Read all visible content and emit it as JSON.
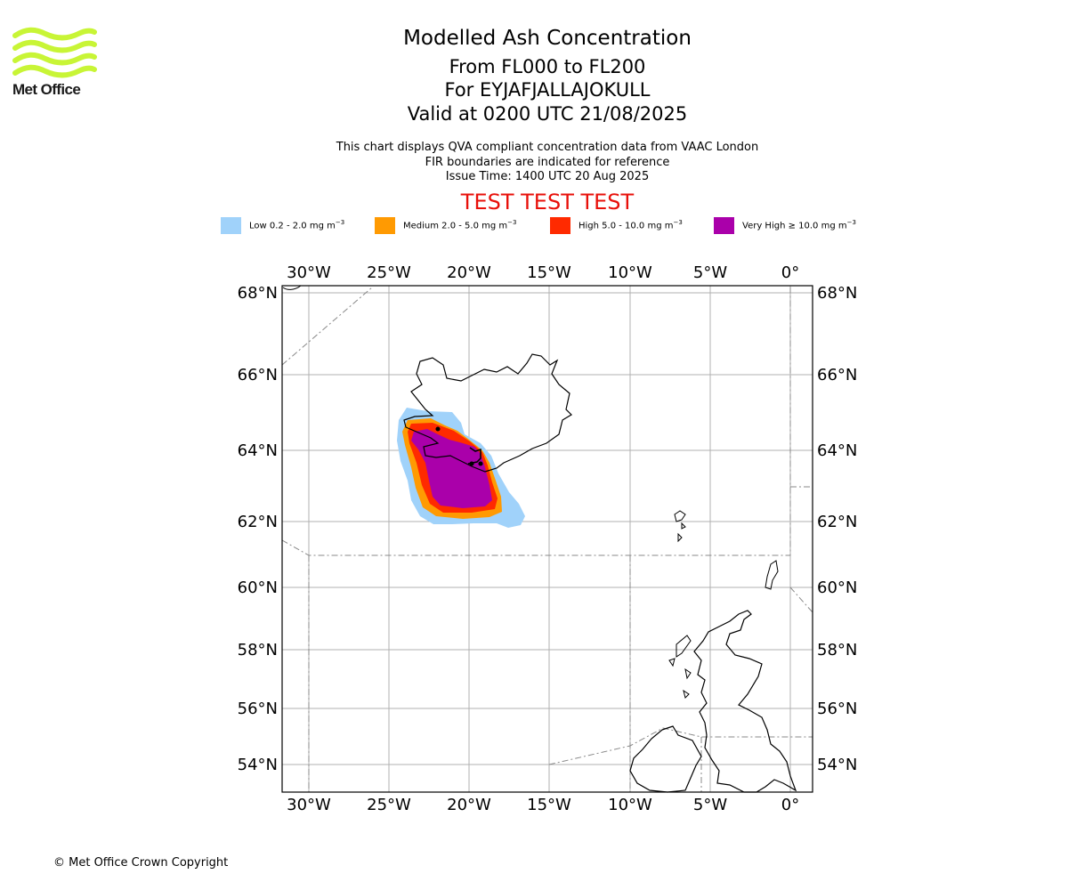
{
  "header": {
    "logo_text": "Met Office",
    "logo_color": "#c8f536",
    "title_line1": "Modelled Ash Concentration",
    "title_line2": "From FL000 to FL200",
    "title_line3": "For EYJAFJALLAJOKULL",
    "title_line4": "Valid at 0200 UTC 21/08/2025",
    "info_line1": "This chart displays QVA compliant concentration data from VAAC London",
    "info_line2": "FIR boundaries are indicated for reference",
    "info_line3": "Issue Time: 1400 UTC 20 Aug 2025",
    "test_banner": "TEST TEST TEST",
    "test_color": "#e8100a"
  },
  "legend": [
    {
      "label": "Low 0.2 - 2.0 mg m",
      "sup": "−3",
      "color": "#a0d2fa"
    },
    {
      "label": "Medium 2.0 - 5.0 mg m",
      "sup": "−3",
      "color": "#ff9a02"
    },
    {
      "label": "High 5.0 - 10.0 mg m",
      "sup": "−3",
      "color": "#ff2a00"
    },
    {
      "label": "Very High ≥ 10.0 mg m",
      "sup": "−3",
      "color": "#aa00aa"
    }
  ],
  "map": {
    "lon_labels": [
      "30°W",
      "25°W",
      "20°W",
      "15°W",
      "10°W",
      "5°W",
      "0°"
    ],
    "lat_labels": [
      "68°N",
      "66°N",
      "64°N",
      "62°N",
      "60°N",
      "58°N",
      "56°N",
      "54°N"
    ],
    "volcano": "EYJAFJALLAJOKULL",
    "ash_levels": [
      "Low",
      "Medium",
      "High",
      "Very High"
    ]
  },
  "footer": {
    "copyright": "© Met Office Crown Copyright"
  }
}
